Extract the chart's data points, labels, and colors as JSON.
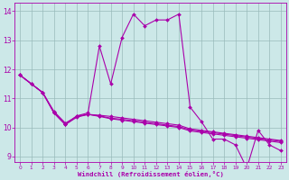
{
  "xlabel": "Windchill (Refroidissement éolien,°C)",
  "xlim": [
    -0.5,
    23.5
  ],
  "ylim": [
    8.8,
    14.3
  ],
  "yticks": [
    9,
    10,
    11,
    12,
    13,
    14
  ],
  "xticks": [
    0,
    1,
    2,
    3,
    4,
    5,
    6,
    7,
    8,
    9,
    10,
    11,
    12,
    13,
    14,
    15,
    16,
    17,
    18,
    19,
    20,
    21,
    22,
    23
  ],
  "bg_color": "#cce8e8",
  "line_color": "#aa00aa",
  "grid_color": "#99bbbb",
  "s1_x": [
    0,
    1,
    2,
    3,
    4,
    5,
    6,
    7,
    8,
    9,
    10,
    11,
    12,
    13,
    14,
    15,
    16,
    17,
    18,
    19,
    20,
    21,
    22,
    23
  ],
  "s1_y": [
    11.8,
    11.5,
    11.2,
    10.5,
    10.1,
    10.4,
    10.5,
    12.8,
    11.5,
    13.1,
    13.9,
    13.5,
    13.7,
    13.7,
    13.9,
    10.7,
    10.2,
    9.6,
    9.6,
    9.4,
    8.6,
    9.9,
    9.4,
    9.2
  ],
  "s2_x": [
    0,
    1,
    2,
    3,
    4,
    5,
    6,
    7,
    8,
    9,
    10,
    11,
    12,
    13,
    14,
    15,
    16,
    17,
    18,
    19,
    20,
    21,
    22,
    23
  ],
  "s2_y": [
    11.8,
    11.5,
    11.2,
    10.55,
    10.15,
    10.38,
    10.45,
    10.42,
    10.38,
    10.33,
    10.28,
    10.23,
    10.18,
    10.13,
    10.08,
    9.95,
    9.9,
    9.85,
    9.8,
    9.75,
    9.7,
    9.65,
    9.6,
    9.55
  ],
  "s3_x": [
    0,
    2,
    3,
    4,
    5,
    6,
    7,
    8,
    9,
    10,
    11,
    12,
    13,
    14,
    15,
    16,
    17,
    18,
    19,
    20,
    21,
    22,
    23
  ],
  "s3_y": [
    11.8,
    11.2,
    10.5,
    10.1,
    10.35,
    10.45,
    10.4,
    10.32,
    10.28,
    10.23,
    10.18,
    10.13,
    10.08,
    10.03,
    9.92,
    9.87,
    9.82,
    9.77,
    9.72,
    9.67,
    9.62,
    9.57,
    9.52
  ],
  "s4_x": [
    0,
    1,
    2,
    3,
    4,
    5,
    6,
    7,
    8,
    9,
    10,
    11,
    12,
    13,
    14,
    15,
    16,
    17,
    18,
    19,
    20,
    21,
    22,
    23
  ],
  "s4_y": [
    11.8,
    11.5,
    11.2,
    10.5,
    10.1,
    10.38,
    10.45,
    10.38,
    10.3,
    10.25,
    10.2,
    10.15,
    10.1,
    10.05,
    10.0,
    9.88,
    9.83,
    9.78,
    9.73,
    9.68,
    9.63,
    9.58,
    9.53,
    9.48
  ]
}
